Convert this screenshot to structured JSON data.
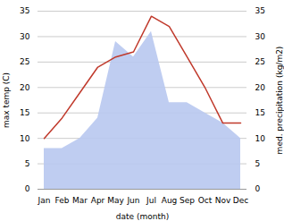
{
  "chart_data": {
    "type": "line",
    "categories": [
      "Jan",
      "Feb",
      "Mar",
      "Apr",
      "May",
      "Jun",
      "Jul",
      "Aug",
      "Sep",
      "Oct",
      "Nov",
      "Dec"
    ],
    "series": [
      {
        "type": "line",
        "color": "#c0392b",
        "values": [
          10,
          14,
          19,
          24,
          26,
          27,
          34,
          32,
          26,
          20,
          13,
          13
        ]
      },
      {
        "type": "area",
        "color": "#b8c8f0",
        "axis": "y2",
        "values": [
          8,
          8,
          10,
          14,
          29,
          26,
          31,
          17,
          17,
          15,
          13,
          10
        ]
      }
    ],
    "xlabel": "date (month)",
    "ylabel": "max temp (C)",
    "y2label": "med. precipitation (kg/m2)",
    "ylim": [
      0,
      35
    ],
    "yticks": [
      0,
      5,
      10,
      15,
      20,
      25,
      30,
      35
    ],
    "y2lim": [
      0,
      35
    ],
    "y2ticks": [
      0,
      5,
      10,
      15,
      20,
      25,
      30,
      35
    ],
    "grid": true
  }
}
